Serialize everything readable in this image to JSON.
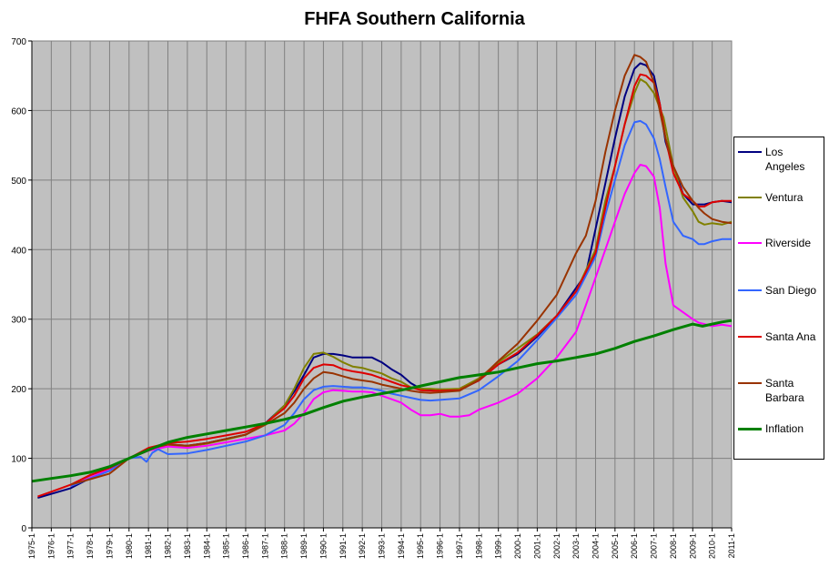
{
  "chart_data": {
    "type": "line",
    "title": "FHFA Southern California",
    "xlabel": "",
    "ylabel": "",
    "ylim": [
      0,
      700
    ],
    "yticks": [
      0,
      100,
      200,
      300,
      400,
      500,
      600,
      700
    ],
    "xlim": [
      1975.0,
      2011.0
    ],
    "xticks": [
      "1975-1",
      "1976-1",
      "1977-1",
      "1978-1",
      "1979-1",
      "1980-1",
      "1981-1",
      "1982-1",
      "1983-1",
      "1984-1",
      "1985-1",
      "1986-1",
      "1987-1",
      "1988-1",
      "1989-1",
      "1990-1",
      "1991-1",
      "1992-1",
      "1993-1",
      "1994-1",
      "1995-1",
      "1996-1",
      "1997-1",
      "1998-1",
      "1999-1",
      "2000-1",
      "2001-1",
      "2002-1",
      "2003-1",
      "2004-1",
      "2005-1",
      "2006-1",
      "2007-1",
      "2008-1",
      "2009-1",
      "2010-1",
      "2011-1"
    ],
    "grid": true,
    "plot_background": "#c0c0c0",
    "legend_position": "right",
    "series": [
      {
        "name": "Los Angeles",
        "color": "#000080",
        "width": 2,
        "x": [
          1975.3,
          1977,
          1979,
          1980,
          1981,
          1982,
          1983,
          1984,
          1985,
          1986,
          1987,
          1988,
          1988.5,
          1989,
          1989.5,
          1990,
          1990.5,
          1991,
          1991.5,
          1992,
          1992.5,
          1993,
          1993.5,
          1994,
          1994.5,
          1995,
          1995.5,
          1996,
          1997,
          1998,
          1999,
          2000,
          2001,
          2002,
          2003,
          2003.5,
          2004,
          2004.5,
          2005,
          2005.5,
          2006,
          2006.3,
          2006.6,
          2007,
          2007.3,
          2007.6,
          2008,
          2008.5,
          2009,
          2009.3,
          2009.6,
          2010,
          2010.5,
          2011
        ],
        "y": [
          43,
          57,
          86,
          100,
          113,
          120,
          118,
          122,
          128,
          134,
          150,
          176,
          196,
          220,
          245,
          250,
          250,
          248,
          245,
          245,
          245,
          238,
          228,
          220,
          208,
          200,
          199,
          199,
          198,
          212,
          235,
          250,
          275,
          305,
          345,
          365,
          430,
          495,
          560,
          620,
          660,
          668,
          665,
          650,
          610,
          555,
          520,
          480,
          465,
          465,
          465,
          468,
          470,
          468
        ]
      },
      {
        "name": "Ventura",
        "color": "#808000",
        "width": 2,
        "x": [
          1977,
          1979,
          1980,
          1981,
          1982,
          1983,
          1984,
          1985,
          1986,
          1987,
          1988,
          1988.5,
          1989,
          1989.5,
          1990,
          1990.5,
          1991,
          1991.5,
          1992,
          1992.5,
          1993,
          1993.5,
          1994,
          1994.5,
          1995,
          1995.5,
          1996,
          1997,
          1998,
          1999,
          2000,
          2001,
          2002,
          2003,
          2004,
          2004.5,
          2005,
          2005.5,
          2006,
          2006.3,
          2006.6,
          2007,
          2007.5,
          2008,
          2008.5,
          2009,
          2009.3,
          2009.6,
          2010,
          2010.5,
          2011
        ],
        "y": [
          62,
          86,
          100,
          111,
          118,
          117,
          121,
          127,
          134,
          149,
          176,
          200,
          230,
          250,
          252,
          246,
          238,
          232,
          230,
          226,
          222,
          215,
          210,
          202,
          200,
          200,
          199,
          200,
          215,
          238,
          258,
          278,
          305,
          340,
          400,
          470,
          520,
          580,
          625,
          645,
          640,
          625,
          590,
          520,
          475,
          455,
          440,
          436,
          438,
          436,
          440
        ]
      },
      {
        "name": "Riverside",
        "color": "#ff00ff",
        "width": 2,
        "x": [
          1977,
          1979,
          1980,
          1981,
          1982,
          1983,
          1984,
          1985,
          1986,
          1987,
          1988,
          1988.5,
          1989,
          1989.5,
          1990,
          1990.5,
          1991,
          1991.5,
          1992,
          1992.5,
          1993,
          1993.5,
          1994,
          1994.5,
          1995,
          1995.5,
          1996,
          1996.5,
          1997,
          1997.5,
          1998,
          1999,
          2000,
          2001,
          2002,
          2003,
          2003.5,
          2004,
          2004.5,
          2005,
          2005.5,
          2006,
          2006.3,
          2006.6,
          2007,
          2007.3,
          2007.6,
          2008,
          2008.5,
          2009,
          2009.3,
          2009.6,
          2010,
          2010.5,
          2011
        ],
        "y": [
          60,
          85,
          100,
          111,
          117,
          115,
          118,
          123,
          128,
          133,
          140,
          150,
          165,
          185,
          195,
          198,
          197,
          196,
          196,
          195,
          190,
          185,
          180,
          170,
          162,
          162,
          164,
          160,
          160,
          162,
          170,
          180,
          193,
          215,
          245,
          282,
          320,
          360,
          400,
          440,
          480,
          510,
          522,
          520,
          505,
          460,
          380,
          320,
          310,
          300,
          295,
          293,
          290,
          292,
          290
        ]
      },
      {
        "name": "San Diego",
        "color": "#3366ff",
        "width": 2,
        "x": [
          1977,
          1979,
          1980,
          1980.6,
          1980.9,
          1981.2,
          1981.5,
          1982,
          1983,
          1984,
          1985,
          1986,
          1987,
          1988,
          1988.5,
          1989,
          1989.5,
          1990,
          1990.5,
          1991,
          1991.5,
          1992,
          1992.5,
          1993,
          1993.5,
          1994,
          1994.5,
          1995,
          1995.5,
          1996,
          1997,
          1998,
          1999,
          2000,
          2001,
          2002,
          2003,
          2004,
          2004.5,
          2005,
          2005.5,
          2006,
          2006.3,
          2006.6,
          2007,
          2007.3,
          2007.6,
          2008,
          2008.5,
          2009,
          2009.3,
          2009.6,
          2010,
          2010.5,
          2011
        ],
        "y": [
          60,
          82,
          100,
          102,
          95,
          108,
          113,
          106,
          107,
          112,
          118,
          124,
          133,
          148,
          165,
          185,
          198,
          203,
          204,
          203,
          202,
          202,
          200,
          197,
          193,
          190,
          187,
          184,
          183,
          184,
          186,
          198,
          218,
          240,
          270,
          302,
          335,
          390,
          450,
          500,
          550,
          583,
          585,
          580,
          560,
          530,
          490,
          440,
          420,
          415,
          408,
          408,
          412,
          415,
          415
        ]
      },
      {
        "name": "Santa Ana",
        "color": "#dd0000",
        "width": 2,
        "x": [
          1975.3,
          1976,
          1977,
          1978,
          1979,
          1980,
          1981,
          1982,
          1983,
          1984,
          1985,
          1986,
          1987,
          1988,
          1988.5,
          1989,
          1989.5,
          1990,
          1990.5,
          1991,
          1991.5,
          1992,
          1992.5,
          1993,
          1993.5,
          1994,
          1994.5,
          1995,
          1995.5,
          1996,
          1997,
          1998,
          1999,
          2000,
          2001,
          2002,
          2003,
          2004,
          2004.5,
          2005,
          2005.5,
          2006,
          2006.3,
          2006.6,
          2007,
          2007.3,
          2007.6,
          2008,
          2008.5,
          2009,
          2009.3,
          2009.6,
          2010,
          2010.5,
          2011
        ],
        "y": [
          45,
          52,
          62,
          76,
          86,
          100,
          115,
          122,
          124,
          128,
          133,
          138,
          150,
          172,
          190,
          215,
          230,
          235,
          234,
          228,
          225,
          223,
          220,
          215,
          210,
          205,
          202,
          198,
          197,
          197,
          198,
          212,
          235,
          252,
          277,
          305,
          340,
          395,
          460,
          520,
          580,
          635,
          652,
          650,
          640,
          610,
          560,
          510,
          480,
          470,
          462,
          462,
          468,
          470,
          470
        ]
      },
      {
        "name": "Santa Barbara",
        "color": "#993300",
        "width": 2,
        "x": [
          1977,
          1978,
          1979,
          1980,
          1981,
          1982,
          1983,
          1984,
          1985,
          1986,
          1987,
          1988,
          1988.5,
          1989,
          1989.5,
          1990,
          1990.5,
          1991,
          1991.5,
          1992,
          1992.5,
          1993,
          1993.5,
          1994,
          1994.5,
          1995,
          1995.5,
          1996,
          1997,
          1998,
          1999,
          2000,
          2001,
          2002,
          2003,
          2003.5,
          2004,
          2004.5,
          2005,
          2005.5,
          2006,
          2006.3,
          2006.6,
          2007,
          2007.3,
          2007.6,
          2008,
          2008.5,
          2009,
          2009.3,
          2009.6,
          2010,
          2010.5,
          2011
        ],
        "y": [
          62,
          70,
          78,
          100,
          113,
          120,
          118,
          122,
          128,
          134,
          148,
          165,
          180,
          200,
          215,
          224,
          222,
          218,
          214,
          212,
          210,
          206,
          203,
          200,
          197,
          195,
          194,
          195,
          197,
          213,
          240,
          265,
          298,
          335,
          395,
          420,
          470,
          540,
          600,
          650,
          680,
          677,
          670,
          640,
          600,
          560,
          520,
          490,
          470,
          460,
          452,
          444,
          440,
          438
        ]
      },
      {
        "name": "Inflation",
        "color": "#008000",
        "width": 3,
        "x": [
          1975.0,
          1976,
          1977,
          1978,
          1979,
          1980,
          1981,
          1982,
          1983,
          1984,
          1985,
          1986,
          1987,
          1988,
          1989,
          1990,
          1991,
          1992,
          1993,
          1994,
          1995,
          1996,
          1997,
          1998,
          1999,
          2000,
          2001,
          2002,
          2003,
          2004,
          2005,
          2006,
          2007,
          2008,
          2009,
          2009.5,
          2010,
          2010.5,
          2011
        ],
        "y": [
          67,
          71,
          75,
          80,
          88,
          100,
          112,
          123,
          130,
          135,
          140,
          145,
          150,
          156,
          163,
          173,
          182,
          188,
          193,
          198,
          204,
          210,
          216,
          220,
          224,
          230,
          236,
          240,
          245,
          250,
          258,
          268,
          276,
          285,
          293,
          290,
          293,
          296,
          298
        ]
      }
    ]
  }
}
